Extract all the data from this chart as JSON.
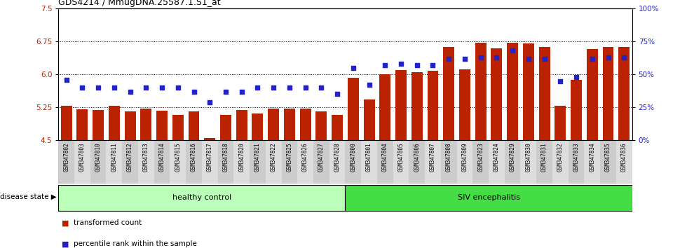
{
  "title": "GDS4214 / MmugDNA.25587.1.S1_at",
  "samples": [
    "GSM347802",
    "GSM347803",
    "GSM347810",
    "GSM347811",
    "GSM347812",
    "GSM347813",
    "GSM347814",
    "GSM347815",
    "GSM347816",
    "GSM347817",
    "GSM347818",
    "GSM347820",
    "GSM347821",
    "GSM347822",
    "GSM347825",
    "GSM347826",
    "GSM347827",
    "GSM347828",
    "GSM347800",
    "GSM347801",
    "GSM347804",
    "GSM347805",
    "GSM347806",
    "GSM347807",
    "GSM347808",
    "GSM347809",
    "GSM347823",
    "GSM347824",
    "GSM347829",
    "GSM347830",
    "GSM347831",
    "GSM347832",
    "GSM347833",
    "GSM347834",
    "GSM347835",
    "GSM347836"
  ],
  "bar_values": [
    5.28,
    5.2,
    5.18,
    5.28,
    5.15,
    5.22,
    5.17,
    5.08,
    5.16,
    4.55,
    5.08,
    5.18,
    5.1,
    5.22,
    5.22,
    5.22,
    5.15,
    5.08,
    5.92,
    5.42,
    6.0,
    6.1,
    6.05,
    6.08,
    6.62,
    6.12,
    6.72,
    6.6,
    6.72,
    6.7,
    6.62,
    5.28,
    5.88,
    6.58,
    6.62,
    6.62
  ],
  "percentile_values": [
    46,
    40,
    40,
    40,
    37,
    40,
    40,
    40,
    37,
    29,
    37,
    37,
    40,
    40,
    40,
    40,
    40,
    35,
    55,
    42,
    57,
    58,
    57,
    57,
    62,
    62,
    63,
    63,
    68,
    62,
    62,
    45,
    48,
    62,
    63,
    63
  ],
  "healthy_count": 18,
  "siv_count": 18,
  "bar_color": "#bb2200",
  "dot_color": "#2222cc",
  "healthy_color": "#bbffbb",
  "siv_color": "#44dd44",
  "ylim_left": [
    4.5,
    7.5
  ],
  "ylim_right": [
    0,
    100
  ],
  "yticks_left": [
    4.5,
    5.25,
    6.0,
    6.75,
    7.5
  ],
  "yticks_right": [
    0,
    25,
    50,
    75,
    100
  ],
  "hlines": [
    5.25,
    6.0,
    6.75
  ],
  "tick_bg_color": "#cccccc",
  "tick_bg_color_alt": "#dddddd"
}
